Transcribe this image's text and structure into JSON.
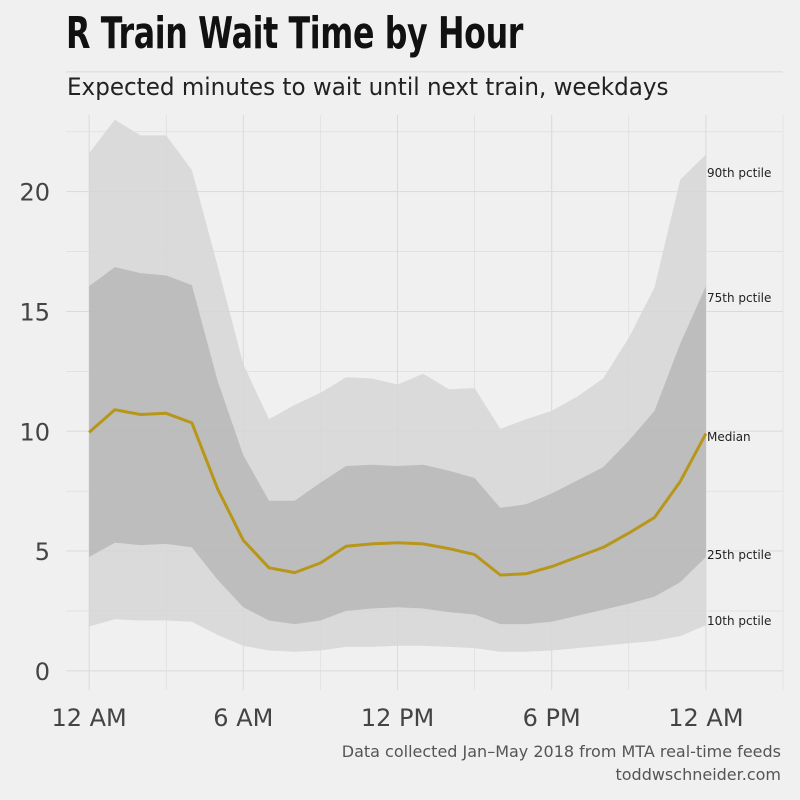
{
  "header": {
    "title": "R Train Wait Time by Hour",
    "subtitle": "Expected minutes to wait until next train, weekdays"
  },
  "footer": {
    "caption_line1": "Data collected Jan–May 2018 from MTA real-time feeds",
    "caption_line2": "toddwschneider.com"
  },
  "colors": {
    "background": "#f0f0f0",
    "outer_band": "#d6d6d6",
    "inner_band": "#b7b7b7",
    "median_line": "#b8961a",
    "grid": "#dadada"
  },
  "chart_data": {
    "type": "area",
    "title": "R Train Wait Time by Hour",
    "subtitle": "Expected minutes to wait until next train, weekdays",
    "xlabel": "",
    "ylabel": "",
    "x": [
      0,
      1,
      2,
      3,
      4,
      5,
      6,
      7,
      8,
      9,
      10,
      11,
      12,
      13,
      14,
      15,
      16,
      17,
      18,
      19,
      20,
      21,
      22,
      23,
      24
    ],
    "xlim": [
      -0.9,
      27
    ],
    "ylim": [
      -0.8,
      23.2
    ],
    "x_ticks": [
      {
        "value": 0,
        "label": "12 AM"
      },
      {
        "value": 6,
        "label": "6 AM"
      },
      {
        "value": 12,
        "label": "12 PM"
      },
      {
        "value": 18,
        "label": "6 PM"
      },
      {
        "value": 24,
        "label": "12 AM"
      }
    ],
    "y_ticks": [
      {
        "value": 0,
        "label": "0"
      },
      {
        "value": 5,
        "label": "5"
      },
      {
        "value": 10,
        "label": "10"
      },
      {
        "value": 15,
        "label": "15"
      },
      {
        "value": 20,
        "label": "20"
      }
    ],
    "grid": true,
    "series": [
      {
        "name": "90th pctile",
        "values": [
          21.6,
          23.0,
          22.35,
          22.35,
          20.9,
          16.9,
          12.8,
          10.5,
          11.1,
          11.6,
          12.25,
          12.2,
          11.95,
          12.4,
          11.75,
          11.8,
          10.1,
          10.5,
          10.85,
          11.45,
          12.2,
          13.9,
          16.0,
          20.5,
          21.55
        ]
      },
      {
        "name": "75th pctile",
        "values": [
          16.05,
          16.85,
          16.6,
          16.5,
          16.1,
          12.1,
          9.0,
          7.1,
          7.1,
          7.85,
          8.55,
          8.6,
          8.55,
          8.6,
          8.35,
          8.05,
          6.8,
          6.95,
          7.4,
          7.95,
          8.5,
          9.6,
          10.85,
          13.65,
          16.05
        ]
      },
      {
        "name": "Median",
        "values": [
          9.95,
          10.9,
          10.7,
          10.75,
          10.35,
          7.6,
          5.45,
          4.3,
          4.1,
          4.5,
          5.2,
          5.3,
          5.35,
          5.3,
          5.1,
          4.85,
          4.0,
          4.05,
          4.35,
          4.75,
          5.15,
          5.75,
          6.4,
          7.9,
          9.9
        ]
      },
      {
        "name": "25th pctile",
        "values": [
          4.75,
          5.35,
          5.25,
          5.3,
          5.15,
          3.8,
          2.65,
          2.1,
          1.95,
          2.1,
          2.5,
          2.6,
          2.65,
          2.6,
          2.45,
          2.35,
          1.95,
          1.95,
          2.05,
          2.3,
          2.55,
          2.8,
          3.1,
          3.7,
          4.75
        ]
      },
      {
        "name": "10th pctile",
        "values": [
          1.85,
          2.15,
          2.1,
          2.1,
          2.05,
          1.5,
          1.05,
          0.85,
          0.8,
          0.85,
          1.0,
          1.0,
          1.05,
          1.05,
          1.0,
          0.95,
          0.8,
          0.8,
          0.85,
          0.95,
          1.05,
          1.15,
          1.25,
          1.45,
          1.9
        ]
      }
    ]
  }
}
